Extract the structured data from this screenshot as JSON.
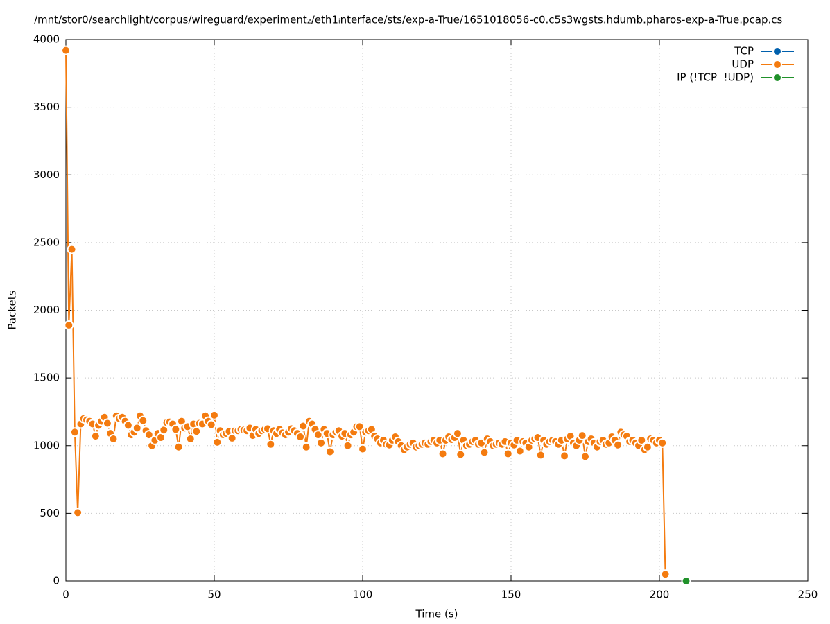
{
  "chart_data": {
    "type": "line",
    "title": "/mnt/stor0/searchlight/corpus/wireguard/experiment₂/eth1ᵢnterface/sts/exp-a-True/1651018056-c0.c5s3wgsts.hdumb.pharos-exp-a-True.pcap.cs",
    "xlabel": "Time (s)",
    "ylabel": "Packets",
    "xlim": [
      0,
      250
    ],
    "xticks": [
      0,
      50,
      100,
      150,
      200,
      250
    ],
    "ylim": [
      0,
      4000
    ],
    "yticks": [
      0,
      500,
      1000,
      1500,
      2000,
      2500,
      3000,
      3500,
      4000
    ],
    "grid": true,
    "legend": "top-right",
    "series": [
      {
        "name": "TCP",
        "color": "#0060ad",
        "x": [],
        "values": []
      },
      {
        "name": "UDP",
        "color": "#f47b0f",
        "x": [
          0,
          1,
          2,
          3,
          4,
          5,
          6,
          7,
          8,
          9,
          10,
          11,
          12,
          13,
          14,
          15,
          16,
          17,
          18,
          19,
          20,
          21,
          22,
          23,
          24,
          25,
          26,
          27,
          28,
          29,
          30,
          31,
          32,
          33,
          34,
          35,
          36,
          37,
          38,
          39,
          40,
          41,
          42,
          43,
          44,
          45,
          46,
          47,
          48,
          49,
          50,
          51,
          52,
          53,
          54,
          55,
          56,
          57,
          58,
          59,
          60,
          61,
          62,
          63,
          64,
          65,
          66,
          67,
          68,
          69,
          70,
          71,
          72,
          73,
          74,
          75,
          76,
          77,
          78,
          79,
          80,
          81,
          82,
          83,
          84,
          85,
          86,
          87,
          88,
          89,
          90,
          91,
          92,
          93,
          94,
          95,
          96,
          97,
          98,
          99,
          100,
          101,
          102,
          103,
          104,
          105,
          106,
          107,
          108,
          109,
          110,
          111,
          112,
          113,
          114,
          115,
          116,
          117,
          118,
          119,
          120,
          121,
          122,
          123,
          124,
          125,
          126,
          127,
          128,
          129,
          130,
          131,
          132,
          133,
          134,
          135,
          136,
          137,
          138,
          139,
          140,
          141,
          142,
          143,
          144,
          145,
          146,
          147,
          148,
          149,
          150,
          151,
          152,
          153,
          154,
          155,
          156,
          157,
          158,
          159,
          160,
          161,
          162,
          163,
          164,
          165,
          166,
          167,
          168,
          169,
          170,
          171,
          172,
          173,
          174,
          175,
          176,
          177,
          178,
          179,
          180,
          181,
          182,
          183,
          184,
          185,
          186,
          187,
          188,
          189,
          190,
          191,
          192,
          193,
          194,
          195,
          196,
          197,
          198,
          199,
          200,
          201,
          202
        ],
        "values": [
          3920,
          1890,
          2450,
          1100,
          505,
          1160,
          1200,
          1190,
          1180,
          1160,
          1070,
          1150,
          1180,
          1210,
          1165,
          1090,
          1050,
          1220,
          1200,
          1210,
          1180,
          1150,
          1080,
          1100,
          1130,
          1220,
          1185,
          1110,
          1080,
          1000,
          1040,
          1090,
          1060,
          1115,
          1170,
          1175,
          1160,
          1120,
          990,
          1180,
          1130,
          1140,
          1050,
          1160,
          1105,
          1165,
          1160,
          1220,
          1180,
          1155,
          1225,
          1025,
          1110,
          1080,
          1090,
          1105,
          1055,
          1110,
          1110,
          1120,
          1115,
          1110,
          1130,
          1075,
          1120,
          1090,
          1110,
          1120,
          1125,
          1010,
          1110,
          1090,
          1120,
          1095,
          1080,
          1100,
          1125,
          1110,
          1090,
          1065,
          1145,
          990,
          1180,
          1160,
          1120,
          1080,
          1020,
          1120,
          1090,
          955,
          1080,
          1100,
          1110,
          1070,
          1090,
          1000,
          1080,
          1100,
          1140,
          1140,
          975,
          1100,
          1110,
          1120,
          1070,
          1050,
          1020,
          1040,
          1010,
          1005,
          1040,
          1065,
          1030,
          1000,
          970,
          990,
          1010,
          1020,
          990,
          1000,
          1010,
          1020,
          1010,
          1030,
          1040,
          1020,
          1040,
          940,
          1040,
          1065,
          1045,
          1060,
          1090,
          935,
          1040,
          1000,
          1010,
          1030,
          1040,
          1010,
          1020,
          950,
          1050,
          1030,
          1000,
          1010,
          1020,
          1010,
          1030,
          940,
          1020,
          1005,
          1040,
          960,
          1030,
          1020,
          990,
          1040,
          1050,
          1060,
          930,
          1040,
          1010,
          1030,
          1040,
          1030,
          1010,
          1040,
          925,
          1050,
          1070,
          1020,
          1000,
          1040,
          1075,
          920,
          1030,
          1050,
          1020,
          990,
          1030,
          1040,
          1010,
          1020,
          1065,
          1040,
          1005,
          1100,
          1080,
          1070,
          1030,
          1040,
          1020,
          1000,
          1040,
          970,
          990,
          1050,
          1040,
          1020,
          1040,
          1020,
          50
        ]
      },
      {
        "name": "IP (!TCP  !UDP)",
        "color": "#20912a",
        "x": [
          209
        ],
        "values": [
          0
        ]
      }
    ]
  }
}
